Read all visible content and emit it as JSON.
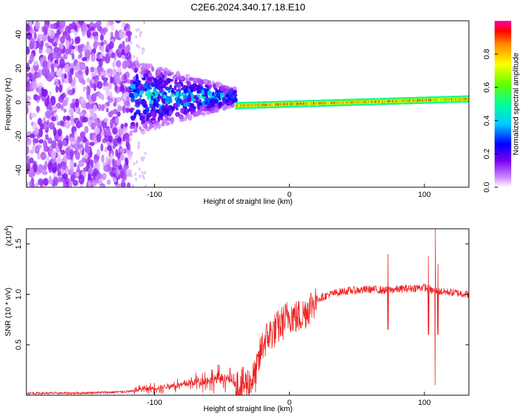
{
  "figure": {
    "title": "C2E6.2024.340.17.18.E10"
  },
  "chart_data": [
    {
      "type": "heatmap",
      "xlabel": "Height of straight line (km)",
      "ylabel": "Frequency (Hz)",
      "xlim": [
        -195,
        133
      ],
      "ylim": [
        -50,
        48
      ],
      "x_ticks": [
        -100,
        0,
        100
      ],
      "y_ticks": [
        -40,
        -20,
        0,
        20,
        40
      ],
      "colorbar": {
        "label": "Normalized spectral amplitude",
        "range": [
          0,
          1
        ],
        "ticks": [
          "0.0",
          "0.2",
          "0.4",
          "0.6",
          "0.8"
        ],
        "colormap": "rainbow"
      },
      "regions": [
        {
          "name": "noise",
          "x": [
            -195,
            -118
          ],
          "freq": [
            -50,
            48
          ],
          "amplitude": 0.08
        },
        {
          "name": "transition",
          "x": [
            -118,
            -40
          ],
          "freq_center": 3,
          "freq_halfwidth_start": 22,
          "freq_halfwidth_end": 5,
          "amplitude": 0.3
        },
        {
          "name": "signal",
          "x": [
            -40,
            133
          ],
          "freq_center_start": -2,
          "freq_center_end": 2,
          "amplitude": 0.95
        }
      ]
    },
    {
      "type": "line",
      "xlabel": "Height of straight line (km)",
      "ylabel": "SNR (10 * v/v)",
      "multiplier": "(x10",
      "multiplier_exp": "4",
      "xlim": [
        -195,
        133
      ],
      "ylim": [
        0,
        1.65
      ],
      "x_ticks": [
        -100,
        0,
        100
      ],
      "y_ticks": [
        "0.5",
        "1.0",
        "1.5"
      ],
      "color": "#ee2222",
      "series": [
        {
          "x": [
            -195,
            -160,
            -130,
            -115,
            -110,
            -100,
            -90,
            -80,
            -70,
            -60,
            -50,
            -45,
            -40,
            -35,
            -30,
            -25,
            -20,
            -15,
            -10,
            -5,
            0,
            5,
            10,
            15,
            20,
            30,
            40,
            50,
            60,
            70,
            80,
            90,
            100,
            105,
            110,
            120,
            133
          ],
          "values": [
            0.02,
            0.02,
            0.03,
            0.04,
            0.06,
            0.07,
            0.09,
            0.1,
            0.13,
            0.15,
            0.17,
            0.16,
            0.1,
            0.1,
            0.12,
            0.2,
            0.5,
            0.6,
            0.65,
            0.72,
            0.8,
            0.77,
            0.8,
            0.88,
            0.95,
            1.0,
            1.03,
            1.04,
            1.05,
            1.04,
            1.05,
            1.06,
            1.07,
            1.04,
            1.03,
            1.02,
            1.0
          ]
        }
      ],
      "spikes": [
        {
          "x": 73,
          "peak": 1.4,
          "trough": 0.65
        },
        {
          "x": 103,
          "peak": 1.38,
          "trough": 0.6
        },
        {
          "x": 108,
          "peak": 1.65,
          "trough": 0.1
        },
        {
          "x": 110,
          "peak": 1.3,
          "trough": 0.6
        }
      ]
    }
  ]
}
